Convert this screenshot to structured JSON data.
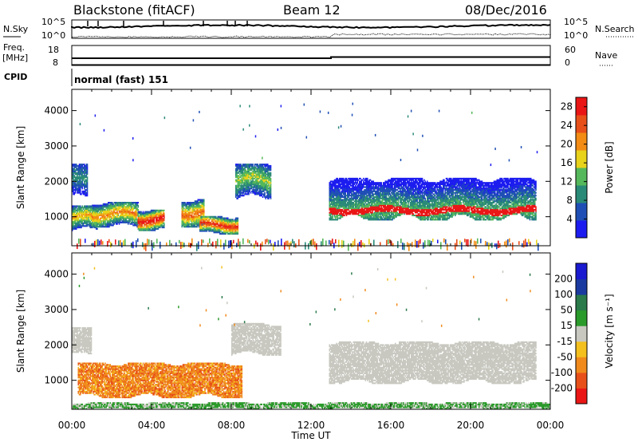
{
  "header": {
    "station": "Blackstone (fitACF)",
    "beam": "Beam 12",
    "date": "08/Dec/2016"
  },
  "noise_panel": {
    "left_label": "N.Sky",
    "right_label": "N.Search",
    "left_ticks": [
      "10^5",
      "10^0"
    ],
    "right_ticks": [
      "10^5",
      "10^0"
    ]
  },
  "freq_panel": {
    "left_label_line1": "Freq.",
    "left_label_line2": "[MHz]",
    "right_label": "Nave",
    "left_ticks": [
      "18",
      "8"
    ],
    "right_ticks": [
      "60",
      "0"
    ]
  },
  "cpid": {
    "label": "CPID",
    "value": "normal (fast) 151"
  },
  "colors": {
    "power_scale": [
      "#1c1cf0",
      "#1f4fb5",
      "#2a8a78",
      "#55b85a",
      "#e8d21a",
      "#f28c14",
      "#e8501a",
      "#ea1616"
    ],
    "velocity_scale": [
      "#ea1616",
      "#e8501a",
      "#f08a1c",
      "#f4c01e",
      "#c8c8c0",
      "#2a9a2a",
      "#2a7a4a",
      "#1a3aa0",
      "#1a1ad0"
    ]
  },
  "chart_data": [
    {
      "type": "heatmap",
      "name": "power",
      "xlabel": "",
      "ylabel": "Slant Range [km]",
      "xlim": [
        0,
        24
      ],
      "ylim": [
        180,
        4600
      ],
      "yticks": [
        "1000",
        "2000",
        "3000",
        "4000"
      ],
      "colorbar_label": "Power [dB]",
      "colorbar_ticks": [
        "4",
        "8",
        "12",
        "16",
        "20",
        "24",
        "28"
      ],
      "colorbar_range": [
        0,
        30
      ],
      "echo_regions": [
        {
          "t0": 0.0,
          "t1": 1.3,
          "r_low": 600,
          "r_high": 1300,
          "peak_db": 20
        },
        {
          "t0": 0.0,
          "t1": 0.8,
          "r_low": 1500,
          "r_high": 2500,
          "peak_db": 10
        },
        {
          "t0": 1.0,
          "t1": 3.3,
          "r_low": 700,
          "r_high": 1400,
          "peak_db": 22
        },
        {
          "t0": 3.3,
          "t1": 4.6,
          "r_low": 600,
          "r_high": 1200,
          "peak_db": 30
        },
        {
          "t0": 5.5,
          "t1": 6.6,
          "r_low": 700,
          "r_high": 1500,
          "peak_db": 24
        },
        {
          "t0": 6.4,
          "t1": 8.3,
          "r_low": 500,
          "r_high": 1000,
          "peak_db": 28
        },
        {
          "t0": 8.2,
          "t1": 10.0,
          "r_low": 1500,
          "r_high": 2500,
          "peak_db": 16
        },
        {
          "t0": 12.9,
          "t1": 23.3,
          "r_low": 900,
          "r_high": 2100,
          "peak_db": 30
        }
      ]
    },
    {
      "type": "heatmap",
      "name": "velocity",
      "xlabel": "Time UT",
      "ylabel": "Slant Range [km]",
      "xlim": [
        0,
        24
      ],
      "ylim": [
        180,
        4600
      ],
      "xticks": [
        "00:00",
        "04:00",
        "08:00",
        "12:00",
        "16:00",
        "20:00",
        "00:00"
      ],
      "yticks": [
        "1000",
        "2000",
        "3000",
        "4000"
      ],
      "colorbar_label": "Velocity [m s⁻¹]",
      "colorbar_ticks": [
        "200",
        "100",
        "50",
        "15",
        "-15",
        "-50",
        "-100",
        "-200"
      ],
      "echo_regions": [
        {
          "t0": 0.3,
          "t1": 8.5,
          "r_low": 500,
          "r_high": 1500,
          "velocity": -80
        },
        {
          "t0": 0.0,
          "t1": 1.0,
          "r_low": 1700,
          "r_high": 2500,
          "velocity": 0
        },
        {
          "t0": 8.0,
          "t1": 10.5,
          "r_low": 1700,
          "r_high": 2600,
          "velocity": 0
        },
        {
          "t0": 12.9,
          "t1": 23.3,
          "r_low": 900,
          "r_high": 2100,
          "velocity": 0
        },
        {
          "t0": 0.0,
          "t1": 24.0,
          "r_low": 180,
          "r_high": 350,
          "velocity": 10
        }
      ]
    }
  ]
}
